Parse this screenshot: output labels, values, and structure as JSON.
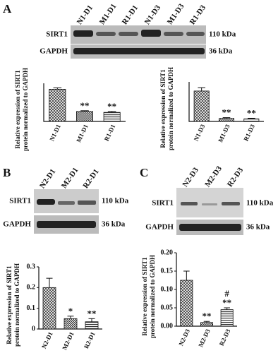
{
  "panels": [
    "A",
    "B",
    "C"
  ],
  "blots": [
    {
      "lanes": [
        "N1-D1",
        "M1-D1",
        "R1-D1",
        "N1-D3",
        "M1-D3",
        "R1-D3"
      ],
      "rows": [
        "SIRT1",
        "GAPDH"
      ],
      "sizes": [
        "110 kDa",
        "36 kDa"
      ]
    },
    {
      "lanes": [
        "N2-D1",
        "M2-D1",
        "R2-D1"
      ],
      "rows": [
        "SIRT1",
        "GAPDH"
      ],
      "sizes": [
        "110 kDa",
        "36 kDa"
      ]
    },
    {
      "lanes": [
        "N2-D3",
        "M2-D3",
        "R2-D3"
      ],
      "rows": [
        "SIRT1",
        "GAPDH"
      ],
      "sizes": [
        "110 kDa",
        "36 kDa"
      ]
    }
  ],
  "chart_data": [
    {
      "type": "bar",
      "ylabel": [
        "Relative expression of SIRT1",
        "protein normalized to GAPDH"
      ],
      "categories": [
        "N1-D1",
        "M1-D1",
        "R1-D1"
      ],
      "values": [
        1.35,
        0.42,
        0.38
      ],
      "errors": [
        0.06,
        0.03,
        0.04
      ],
      "significance": [
        null,
        "**",
        "**"
      ],
      "ylim": [
        0,
        1.6
      ]
    },
    {
      "type": "bar",
      "ylabel": [
        "Relative expression of SIRT1",
        "protein normalized to GAPDH"
      ],
      "categories": [
        "N1-D3",
        "M1-D3",
        "R1-D3"
      ],
      "values": [
        2.0,
        0.2,
        0.17
      ],
      "errors": [
        0.22,
        0.05,
        0.04
      ],
      "significance": [
        null,
        "**",
        "**"
      ],
      "ylim": [
        0,
        2.6
      ]
    },
    {
      "type": "bar",
      "ylabel": [
        "Relative expression of SIRT1",
        "protein normalized to GAPDH"
      ],
      "categories": [
        "N2-D1",
        "M2-D1",
        "R2-D1"
      ],
      "values": [
        0.2,
        0.05,
        0.035
      ],
      "errors": [
        0.045,
        0.012,
        0.015
      ],
      "significance": [
        null,
        "*",
        "**"
      ],
      "ylim": [
        0,
        0.3
      ],
      "yticks": [
        0,
        0.1,
        0.2,
        0.3
      ]
    },
    {
      "type": "bar",
      "ylabel": [
        "Relative expression of SIRT1",
        "protein normalized to GAPDH"
      ],
      "categories": [
        "N2-D3",
        "M2-D3",
        "R2-D3"
      ],
      "values": [
        0.125,
        0.01,
        0.045
      ],
      "errors": [
        0.025,
        0.003,
        0.005
      ],
      "significance": [
        null,
        "**",
        "**"
      ],
      "significance2": [
        null,
        null,
        "#"
      ],
      "ylim": [
        0,
        0.2
      ],
      "yticks": [
        {
          "value": 0,
          "label": "0.00"
        },
        {
          "value": 0.05,
          "label": "0.05"
        },
        {
          "value": 0.1,
          "label": "0.10"
        },
        {
          "value": 0.15,
          "label": "0.15"
        },
        {
          "value": 0.2,
          "label": "0.20"
        }
      ]
    }
  ]
}
